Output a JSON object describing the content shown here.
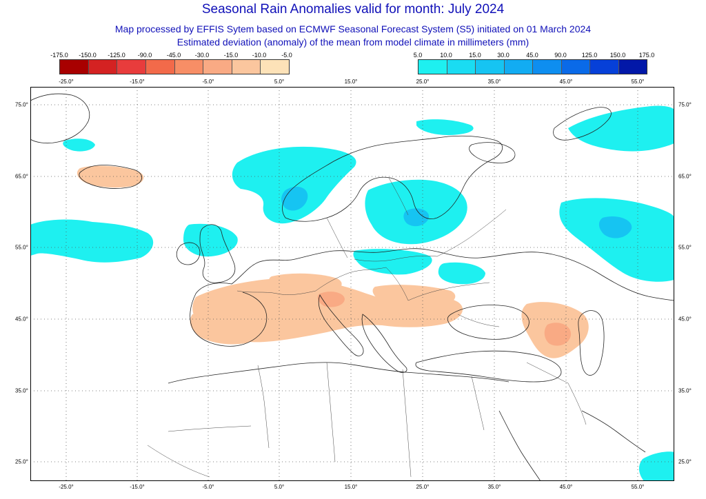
{
  "header": {
    "title": "Seasonal Rain Anomalies valid for month: July 2024",
    "subtitle1": "Map processed by EFFIS Sytem based on ECMWF Seasonal Forecast System (S5) initiated on 01 March 2024",
    "subtitle2": "Estimated deviation (anomaly) of the mean from model climate in millimeters (mm)"
  },
  "legend": {
    "negative": {
      "ticks": [
        "-175.0",
        "-150.0",
        "-125.0",
        "-90.0",
        "-45.0",
        "-30.0",
        "-15.0",
        "-10.0",
        "-5.0"
      ],
      "colors": [
        "#a80000",
        "#d42222",
        "#e83c3c",
        "#f26a4a",
        "#f78e66",
        "#f9aa84",
        "#fbc69e",
        "#fde2b8"
      ]
    },
    "positive": {
      "ticks": [
        "5.0",
        "10.0",
        "15.0",
        "30.0",
        "45.0",
        "90.0",
        "125.0",
        "150.0",
        "175.0"
      ],
      "colors": [
        "#1ef0f0",
        "#1adcf2",
        "#16c4f2",
        "#12acf2",
        "#0e8ef0",
        "#0a6ae8",
        "#0640d8",
        "#0218a8"
      ]
    }
  },
  "axes": {
    "lon_labels": [
      "-25.0°",
      "-15.0°",
      "-5.0°",
      "5.0°",
      "15.0°",
      "25.0°",
      "35.0°",
      "45.0°",
      "55.0°"
    ],
    "lat_labels": [
      "75.0°",
      "65.0°",
      "55.0°",
      "45.0°",
      "35.0°",
      "25.0°"
    ]
  },
  "colors": {
    "title": "#1010b8",
    "frame": "#000000",
    "grid": "#555555",
    "coast": "#222222"
  }
}
